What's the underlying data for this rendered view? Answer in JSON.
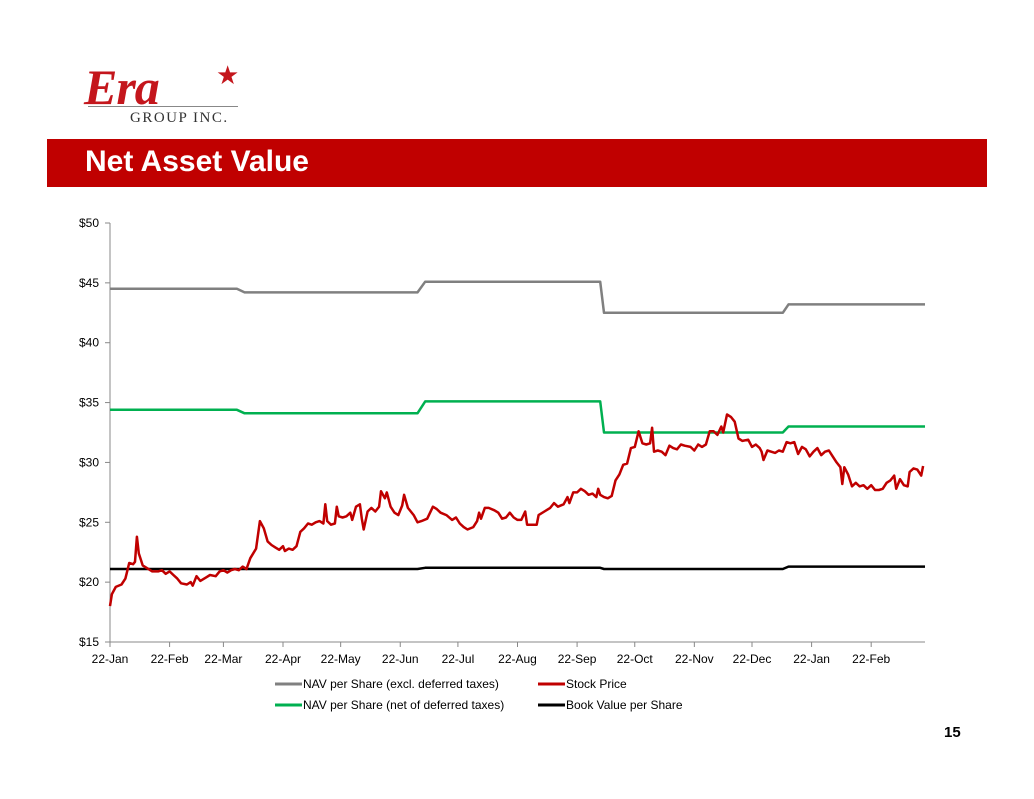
{
  "logo": {
    "wordmark": "Era",
    "star": "★",
    "subtitle": "GROUP INC."
  },
  "slide": {
    "title": "Net Asset Value",
    "page_number": "15"
  },
  "colors": {
    "banner": "#c00000",
    "nav_excl": "#808080",
    "nav_net": "#00b050",
    "stock": "#c00000",
    "book": "#000000"
  },
  "chart_data": {
    "type": "line",
    "title": "",
    "xlabel": "",
    "ylabel": "",
    "x_ticks": [
      "22-Jan",
      "22-Feb",
      "22-Mar",
      "22-Apr",
      "22-May",
      "22-Jun",
      "22-Jul",
      "22-Aug",
      "22-Sep",
      "22-Oct",
      "22-Nov",
      "22-Dec",
      "22-Jan",
      "22-Feb"
    ],
    "x_tick_days": [
      0,
      31,
      59,
      90,
      120,
      151,
      181,
      212,
      243,
      273,
      304,
      334,
      365,
      396
    ],
    "x_range_days": [
      0,
      424
    ],
    "y_ticks": [
      "$15",
      "$20",
      "$25",
      "$30",
      "$35",
      "$40",
      "$45",
      "$50"
    ],
    "ylim": [
      15,
      50
    ],
    "grid": false,
    "legend_position": "bottom",
    "series": [
      {
        "name": "NAV per Share (excl. deferred taxes)",
        "key": "nav_excl",
        "points": [
          [
            0,
            44.5
          ],
          [
            66,
            44.5
          ],
          [
            70,
            44.2
          ],
          [
            160,
            44.2
          ],
          [
            164,
            45.1
          ],
          [
            255,
            45.1
          ],
          [
            257,
            42.5
          ],
          [
            350,
            42.5
          ],
          [
            353,
            43.2
          ],
          [
            424,
            43.2
          ]
        ]
      },
      {
        "name": "Stock Price",
        "key": "stock",
        "points": [
          [
            0,
            18.0
          ],
          [
            1,
            19.0
          ],
          [
            3,
            19.6
          ],
          [
            6,
            19.8
          ],
          [
            8,
            20.3
          ],
          [
            10,
            21.6
          ],
          [
            12,
            21.5
          ],
          [
            13,
            21.7
          ],
          [
            14,
            23.8
          ],
          [
            15,
            22.4
          ],
          [
            17,
            21.4
          ],
          [
            19,
            21.2
          ],
          [
            22,
            20.9
          ],
          [
            25,
            20.9
          ],
          [
            27,
            21.0
          ],
          [
            29,
            20.7
          ],
          [
            31,
            20.9
          ],
          [
            33,
            20.6
          ],
          [
            35,
            20.3
          ],
          [
            37,
            19.9
          ],
          [
            40,
            19.8
          ],
          [
            42,
            20.0
          ],
          [
            43,
            19.7
          ],
          [
            45,
            20.5
          ],
          [
            47,
            20.1
          ],
          [
            50,
            20.4
          ],
          [
            52,
            20.6
          ],
          [
            55,
            20.5
          ],
          [
            57,
            20.9
          ],
          [
            59,
            21.0
          ],
          [
            61,
            20.8
          ],
          [
            63,
            21.0
          ],
          [
            65,
            21.1
          ],
          [
            67,
            21.0
          ],
          [
            69,
            21.3
          ],
          [
            71,
            21.1
          ],
          [
            73,
            22.0
          ],
          [
            76,
            22.8
          ],
          [
            78,
            25.1
          ],
          [
            80,
            24.5
          ],
          [
            82,
            23.4
          ],
          [
            84,
            23.1
          ],
          [
            86,
            22.9
          ],
          [
            88,
            22.7
          ],
          [
            90,
            23.0
          ],
          [
            91,
            22.6
          ],
          [
            93,
            22.8
          ],
          [
            95,
            22.7
          ],
          [
            97,
            23.0
          ],
          [
            99,
            24.2
          ],
          [
            101,
            24.5
          ],
          [
            103,
            24.9
          ],
          [
            105,
            24.8
          ],
          [
            107,
            25.0
          ],
          [
            109,
            25.1
          ],
          [
            111,
            24.9
          ],
          [
            112,
            26.5
          ],
          [
            113,
            25.1
          ],
          [
            115,
            24.8
          ],
          [
            117,
            24.9
          ],
          [
            118,
            26.3
          ],
          [
            119,
            25.5
          ],
          [
            121,
            25.4
          ],
          [
            123,
            25.5
          ],
          [
            125,
            25.8
          ],
          [
            126,
            25.2
          ],
          [
            128,
            26.3
          ],
          [
            130,
            26.5
          ],
          [
            131,
            25.3
          ],
          [
            132,
            24.4
          ],
          [
            134,
            25.9
          ],
          [
            136,
            26.2
          ],
          [
            138,
            25.9
          ],
          [
            140,
            26.3
          ],
          [
            141,
            27.6
          ],
          [
            143,
            27.0
          ],
          [
            144,
            27.5
          ],
          [
            146,
            26.3
          ],
          [
            148,
            25.8
          ],
          [
            150,
            25.6
          ],
          [
            152,
            26.4
          ],
          [
            153,
            27.3
          ],
          [
            155,
            26.2
          ],
          [
            158,
            25.6
          ],
          [
            160,
            25.0
          ],
          [
            162,
            25.1
          ],
          [
            165,
            25.3
          ],
          [
            168,
            26.3
          ],
          [
            170,
            26.1
          ],
          [
            172,
            25.8
          ],
          [
            175,
            25.6
          ],
          [
            178,
            25.2
          ],
          [
            180,
            25.4
          ],
          [
            182,
            24.9
          ],
          [
            184,
            24.6
          ],
          [
            186,
            24.4
          ],
          [
            189,
            24.6
          ],
          [
            191,
            25.1
          ],
          [
            192,
            25.8
          ],
          [
            193,
            25.3
          ],
          [
            195,
            26.2
          ],
          [
            197,
            26.2
          ],
          [
            200,
            26.0
          ],
          [
            202,
            25.8
          ],
          [
            204,
            25.3
          ],
          [
            206,
            25.4
          ],
          [
            208,
            25.8
          ],
          [
            210,
            25.4
          ],
          [
            212,
            25.2
          ],
          [
            214,
            25.2
          ],
          [
            216,
            25.9
          ],
          [
            217,
            24.8
          ],
          [
            219,
            24.8
          ],
          [
            222,
            24.8
          ],
          [
            223,
            25.6
          ],
          [
            226,
            25.9
          ],
          [
            229,
            26.2
          ],
          [
            231,
            26.6
          ],
          [
            233,
            26.3
          ],
          [
            236,
            26.5
          ],
          [
            238,
            27.1
          ],
          [
            239,
            26.6
          ],
          [
            241,
            27.5
          ],
          [
            243,
            27.5
          ],
          [
            245,
            27.8
          ],
          [
            247,
            27.6
          ],
          [
            249,
            27.3
          ],
          [
            251,
            27.4
          ],
          [
            253,
            27.1
          ],
          [
            254,
            27.8
          ],
          [
            255,
            27.3
          ],
          [
            257,
            27.1
          ],
          [
            259,
            27.0
          ],
          [
            261,
            27.2
          ],
          [
            263,
            28.5
          ],
          [
            265,
            29.0
          ],
          [
            267,
            29.8
          ],
          [
            269,
            29.9
          ],
          [
            271,
            31.2
          ],
          [
            273,
            31.3
          ],
          [
            275,
            32.6
          ],
          [
            277,
            31.6
          ],
          [
            279,
            31.5
          ],
          [
            281,
            31.6
          ],
          [
            282,
            32.9
          ],
          [
            283,
            30.9
          ],
          [
            285,
            31.0
          ],
          [
            287,
            30.9
          ],
          [
            289,
            30.6
          ],
          [
            291,
            31.4
          ],
          [
            293,
            31.2
          ],
          [
            295,
            31.1
          ],
          [
            297,
            31.5
          ],
          [
            299,
            31.4
          ],
          [
            302,
            31.3
          ],
          [
            304,
            31.0
          ],
          [
            306,
            31.5
          ],
          [
            308,
            31.3
          ],
          [
            310,
            31.5
          ],
          [
            312,
            32.6
          ],
          [
            314,
            32.6
          ],
          [
            316,
            32.3
          ],
          [
            318,
            33.0
          ],
          [
            319,
            32.5
          ],
          [
            321,
            34.0
          ],
          [
            323,
            33.8
          ],
          [
            325,
            33.4
          ],
          [
            327,
            32.0
          ],
          [
            329,
            31.8
          ],
          [
            332,
            31.9
          ],
          [
            334,
            31.3
          ],
          [
            336,
            31.5
          ],
          [
            338,
            31.2
          ],
          [
            339,
            30.9
          ],
          [
            340,
            30.2
          ],
          [
            342,
            31.0
          ],
          [
            344,
            30.9
          ],
          [
            346,
            30.8
          ],
          [
            348,
            31.0
          ],
          [
            350,
            30.9
          ],
          [
            352,
            31.7
          ],
          [
            354,
            31.6
          ],
          [
            356,
            31.7
          ],
          [
            358,
            30.7
          ],
          [
            360,
            31.3
          ],
          [
            362,
            31.1
          ],
          [
            364,
            30.5
          ],
          [
            366,
            30.9
          ],
          [
            368,
            31.2
          ],
          [
            370,
            30.6
          ],
          [
            372,
            30.9
          ],
          [
            374,
            31.0
          ],
          [
            376,
            30.5
          ],
          [
            378,
            30.0
          ],
          [
            380,
            29.6
          ],
          [
            381,
            28.2
          ],
          [
            382,
            29.6
          ],
          [
            384,
            29.0
          ],
          [
            386,
            28.0
          ],
          [
            388,
            28.3
          ],
          [
            390,
            28.0
          ],
          [
            392,
            28.1
          ],
          [
            394,
            27.8
          ],
          [
            396,
            28.1
          ],
          [
            398,
            27.7
          ],
          [
            400,
            27.7
          ],
          [
            402,
            27.8
          ],
          [
            404,
            28.3
          ],
          [
            406,
            28.5
          ],
          [
            408,
            28.9
          ],
          [
            409,
            27.8
          ],
          [
            411,
            28.6
          ],
          [
            413,
            28.1
          ],
          [
            415,
            28.0
          ],
          [
            416,
            29.2
          ],
          [
            418,
            29.5
          ],
          [
            420,
            29.4
          ],
          [
            422,
            28.9
          ],
          [
            423,
            29.7
          ]
        ]
      },
      {
        "name": "NAV per Share (net of deferred taxes)",
        "key": "nav_net",
        "points": [
          [
            0,
            34.4
          ],
          [
            66,
            34.4
          ],
          [
            70,
            34.1
          ],
          [
            160,
            34.1
          ],
          [
            164,
            35.1
          ],
          [
            255,
            35.1
          ],
          [
            257,
            32.5
          ],
          [
            350,
            32.5
          ],
          [
            353,
            33.0
          ],
          [
            424,
            33.0
          ]
        ]
      },
      {
        "name": "Book Value per Share",
        "key": "book",
        "points": [
          [
            0,
            21.1
          ],
          [
            160,
            21.1
          ],
          [
            164,
            21.2
          ],
          [
            255,
            21.2
          ],
          [
            257,
            21.1
          ],
          [
            350,
            21.1
          ],
          [
            353,
            21.3
          ],
          [
            424,
            21.3
          ]
        ]
      }
    ]
  }
}
